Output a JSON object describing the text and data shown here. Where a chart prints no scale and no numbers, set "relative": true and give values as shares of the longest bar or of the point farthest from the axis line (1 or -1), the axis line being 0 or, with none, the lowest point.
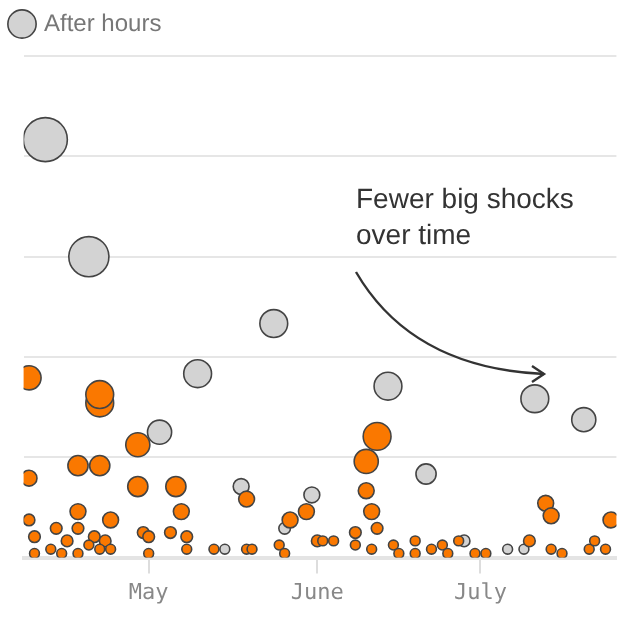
{
  "chart_data": {
    "type": "bubble",
    "relative": true,
    "legend": "top left",
    "grid": "y",
    "annotations": [
      "Fewer big shocks over time"
    ],
    "xlim": [
      "--04-08",
      "--07-26"
    ],
    "xticks": [
      {
        "value": "--05-01",
        "label": "May"
      },
      {
        "value": "--06-01",
        "label": "June"
      },
      {
        "value": "--07-01",
        "label": "July"
      }
    ],
    "series": [
      {
        "color": "#fa7800",
        "x": [
          "--04-09",
          "--04-22",
          "--04-22",
          "--04-29",
          "--04-18",
          "--04-22",
          "--04-09",
          "--04-29",
          "--05-06",
          "--05-07",
          "--05-19",
          "--04-18",
          "--04-24",
          "--04-09",
          "--05-27",
          "--05-30",
          "--04-14",
          "--04-18",
          "--04-30",
          "--05-05",
          "--05-08",
          "--05-01",
          "--04-21",
          "--04-10",
          "--04-16",
          "--04-23",
          "--04-13",
          "--04-20",
          "--04-22",
          "--04-10",
          "--04-15",
          "--04-18",
          "--04-24",
          "--05-01",
          "--05-08",
          "--05-13",
          "--05-19",
          "--05-20",
          "--05-25",
          "--05-26",
          "--06-01",
          "--06-12",
          "--06-10",
          "--06-10",
          "--06-11",
          "--06-12",
          "--06-08",
          "--06-08",
          "--06-02",
          "--06-04",
          "--06-11",
          "--06-15",
          "--06-16",
          "--06-19",
          "--06-19",
          "--06-22",
          "--06-24",
          "--06-25",
          "--06-27",
          "--06-30",
          "--07-02",
          "--07-10",
          "--07-13",
          "--07-14",
          "--07-14",
          "--07-16",
          "--07-21",
          "--07-22",
          "--07-24",
          "--07-25"
        ],
        "values": [
          0.43,
          0.37,
          0.39,
          0.27,
          0.22,
          0.22,
          0.19,
          0.17,
          0.17,
          0.11,
          0.14,
          0.11,
          0.09,
          0.09,
          0.09,
          0.11,
          0.07,
          0.07,
          0.06,
          0.06,
          0.05,
          0.05,
          0.05,
          0.05,
          0.04,
          0.04,
          0.02,
          0.03,
          0.02,
          0.01,
          0.01,
          0.01,
          0.02,
          0.01,
          0.02,
          0.02,
          0.02,
          0.02,
          0.03,
          0.01,
          0.04,
          0.29,
          0.23,
          0.16,
          0.11,
          0.07,
          0.06,
          0.03,
          0.04,
          0.04,
          0.02,
          0.03,
          0.01,
          0.04,
          0.01,
          0.02,
          0.03,
          0.01,
          0.04,
          0.01,
          0.01,
          0.04,
          0.13,
          0.1,
          0.02,
          0.01,
          0.02,
          0.04,
          0.02,
          0.09
        ],
        "sizes": [
          0.3,
          0.4,
          0.4,
          0.3,
          0.21,
          0.21,
          0.13,
          0.21,
          0.21,
          0.13,
          0.13,
          0.13,
          0.13,
          0.07,
          0.13,
          0.13,
          0.07,
          0.07,
          0.07,
          0.07,
          0.07,
          0.07,
          0.07,
          0.07,
          0.07,
          0.07,
          0.05,
          0.05,
          0.05,
          0.05,
          0.05,
          0.05,
          0.05,
          0.05,
          0.05,
          0.05,
          0.05,
          0.05,
          0.05,
          0.05,
          0.07,
          0.4,
          0.3,
          0.13,
          0.13,
          0.07,
          0.07,
          0.05,
          0.05,
          0.05,
          0.05,
          0.05,
          0.05,
          0.05,
          0.05,
          0.05,
          0.05,
          0.05,
          0.05,
          0.05,
          0.05,
          0.07,
          0.13,
          0.13,
          0.05,
          0.05,
          0.05,
          0.05,
          0.05,
          0.13
        ]
      },
      {
        "name": "After hours",
        "color": "#d3d3d3",
        "x": [
          "--04-12",
          "--04-20",
          "--05-10",
          "--05-24",
          "--05-03",
          "--05-18",
          "--05-31",
          "--05-26",
          "--05-15",
          "--06-14",
          "--06-21",
          "--07-11",
          "--07-20",
          "--06-28",
          "--07-06",
          "--07-09"
        ],
        "values": [
          1.0,
          0.72,
          0.44,
          0.56,
          0.3,
          0.17,
          0.15,
          0.07,
          0.02,
          0.41,
          0.2,
          0.38,
          0.33,
          0.04,
          0.02,
          0.02
        ],
        "sizes": [
          1,
          0.83,
          0.4,
          0.4,
          0.3,
          0.13,
          0.13,
          0.07,
          0.05,
          0.4,
          0.21,
          0.4,
          0.3,
          0.07,
          0.05,
          0.05
        ]
      }
    ]
  }
}
